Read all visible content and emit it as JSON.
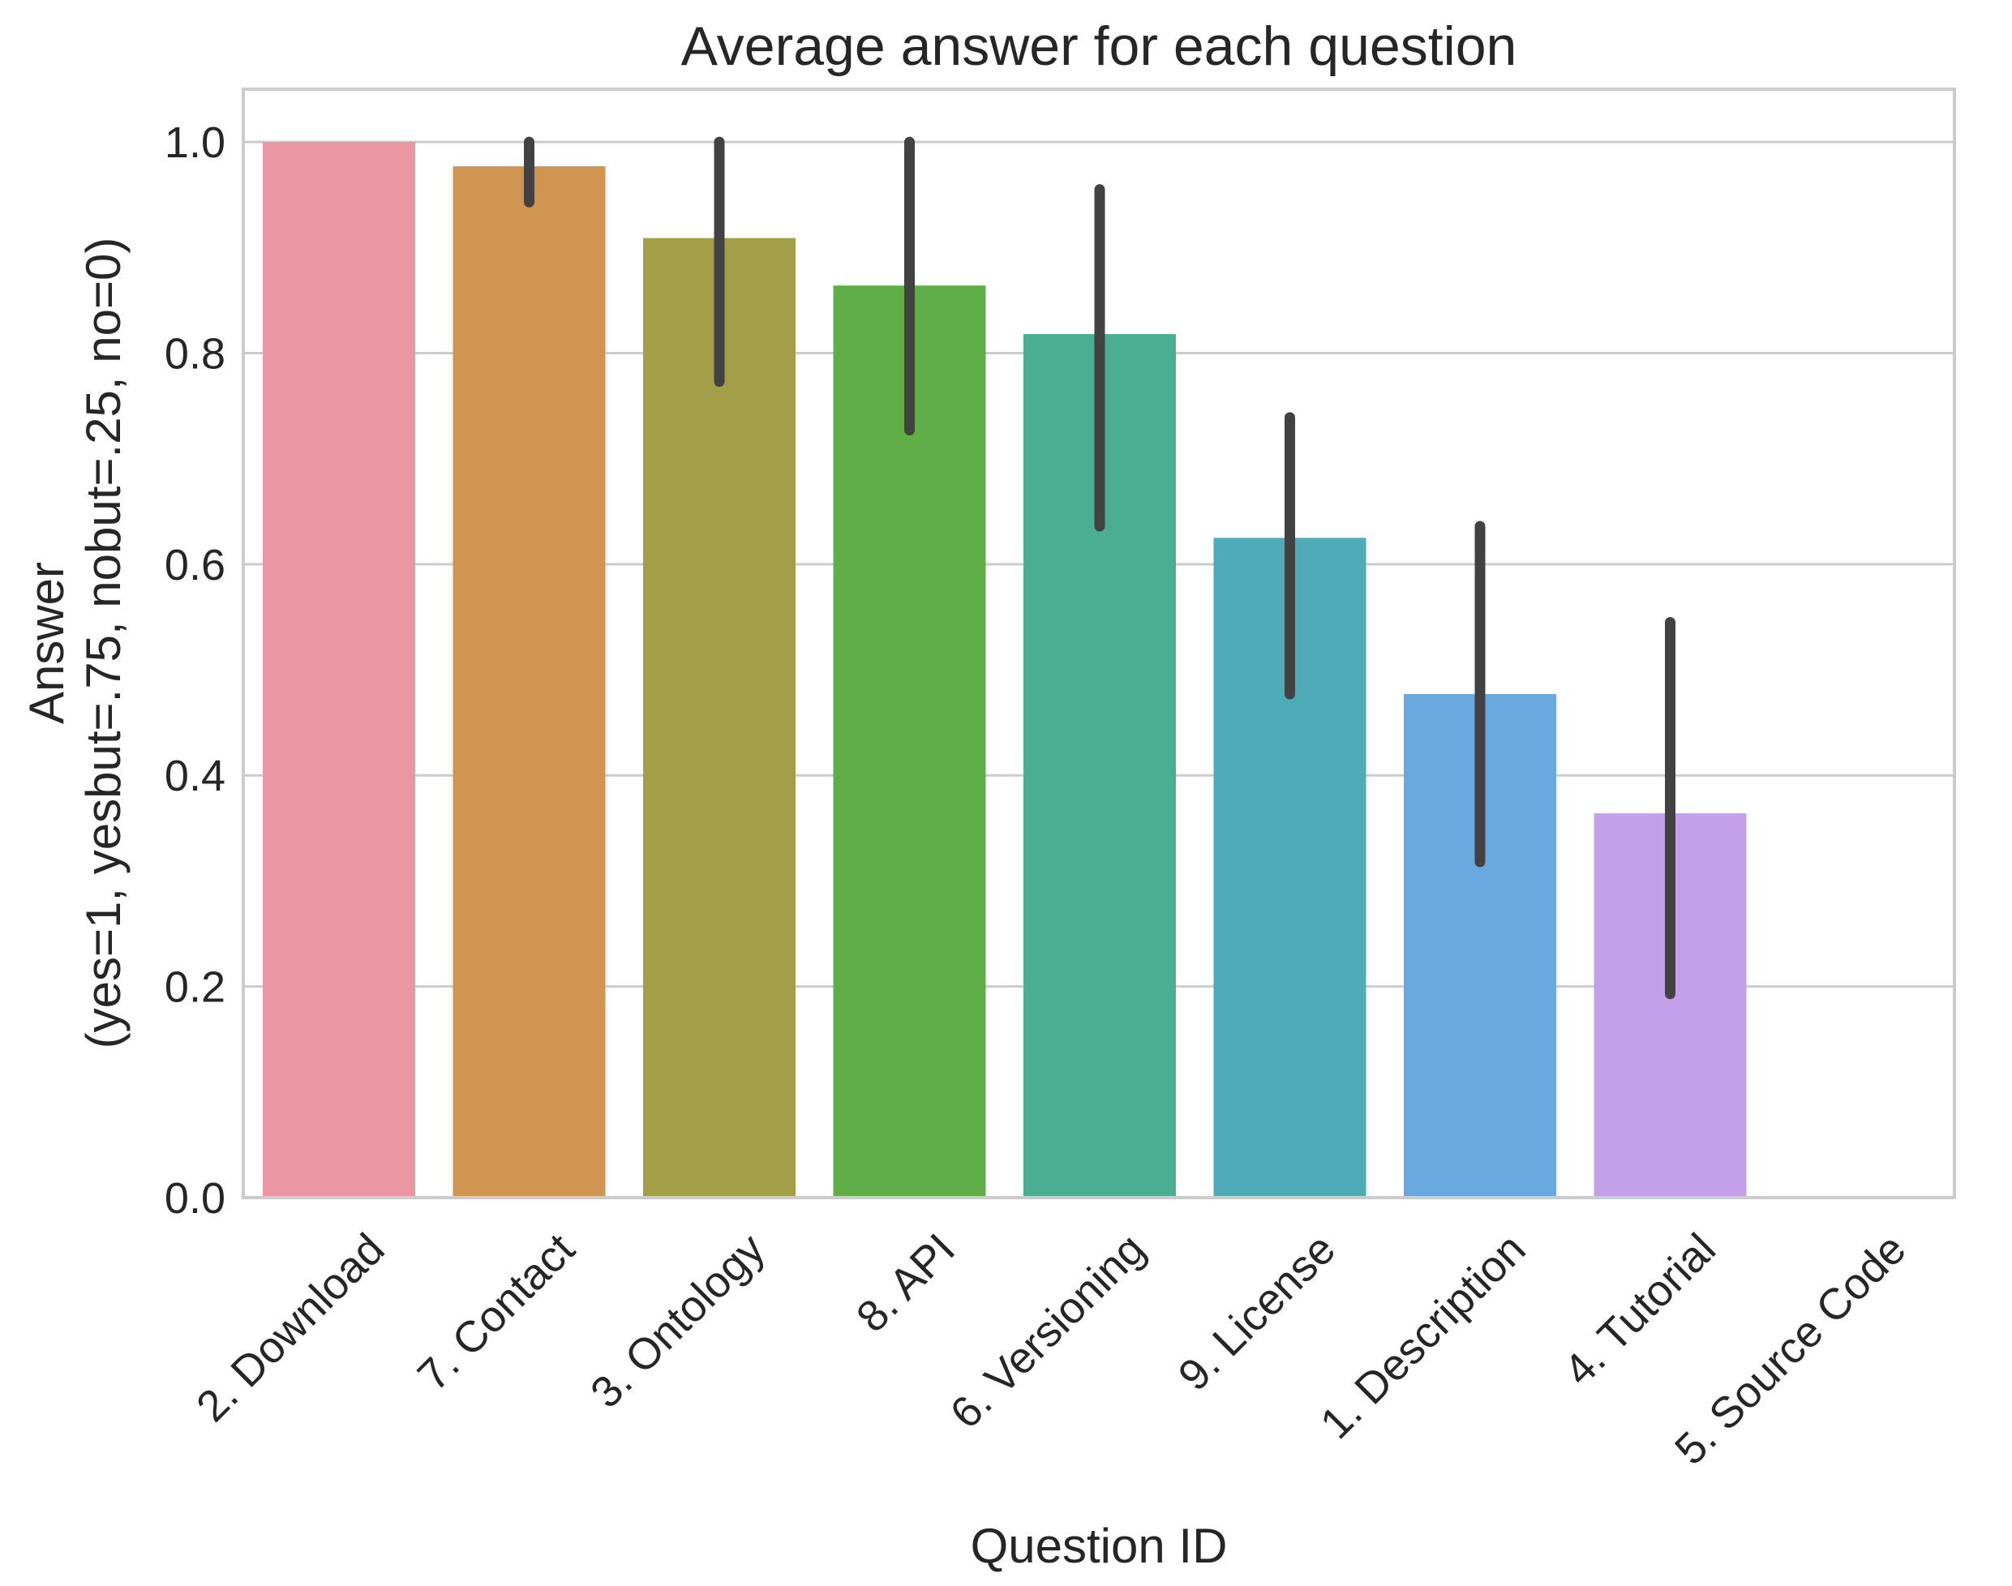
{
  "chart_data": {
    "type": "bar",
    "title": "Average answer for each question",
    "xlabel": "Question ID",
    "ylabel_lines": [
      "Answer",
      "(yes=1, yesbut=.75, nobut=.25, no=0)"
    ],
    "ylim": [
      0,
      1.05
    ],
    "yticks": [
      0.0,
      0.2,
      0.4,
      0.6,
      0.8,
      1.0
    ],
    "ytick_labels": [
      "0.0",
      "0.2",
      "0.4",
      "0.6",
      "0.8",
      "1.0"
    ],
    "grid": "horizontal",
    "categories": [
      "2. Download",
      "7. Contact",
      "3. Ontology",
      "8. API",
      "6. Versioning",
      "9. License",
      "1. Description",
      "4. Tutorial",
      "5. Source Code"
    ],
    "values": [
      1.0,
      0.977,
      0.909,
      0.864,
      0.818,
      0.625,
      0.477,
      0.364,
      0.0
    ],
    "error_low": [
      1.0,
      0.943,
      0.773,
      0.727,
      0.636,
      0.477,
      0.318,
      0.193,
      0.0
    ],
    "error_high": [
      1.0,
      1.0,
      1.0,
      1.0,
      0.955,
      0.739,
      0.636,
      0.545,
      0.0
    ],
    "colors": [
      "#ea96a3",
      "#d09550",
      "#a29f48",
      "#60ae47",
      "#4bad91",
      "#4eabb7",
      "#6aa8e0",
      "#c49fea",
      "#ea93d4"
    ]
  }
}
